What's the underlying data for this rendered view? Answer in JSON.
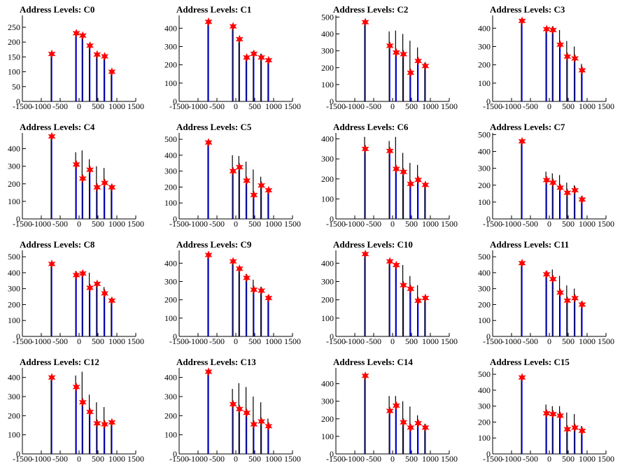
{
  "colors": {
    "histogram": "#000000",
    "fit": "#0000ff",
    "marker": "#ff0000",
    "axis": "#000000"
  },
  "chart_data": [
    {
      "type": "bar",
      "title": "Address Levels: C0",
      "xlim": [
        -1500,
        1500
      ],
      "ylim": [
        0,
        290
      ],
      "yticks": [
        0,
        50,
        100,
        150,
        200,
        250
      ],
      "xticks": [
        -1500,
        -1000,
        -500,
        0,
        500,
        1000,
        1500
      ],
      "peaks": [
        {
          "x": -740,
          "y": 160
        },
        {
          "x": -90,
          "y": 230
        },
        {
          "x": 80,
          "y": 222
        },
        {
          "x": 270,
          "y": 188
        },
        {
          "x": 460,
          "y": 158
        },
        {
          "x": 660,
          "y": 152
        },
        {
          "x": 850,
          "y": 100
        }
      ],
      "markers": [
        160,
        230,
        222,
        188,
        158,
        152,
        100
      ]
    },
    {
      "type": "bar",
      "title": "Address Levels: C1",
      "xlim": [
        -1500,
        1500
      ],
      "ylim": [
        0,
        470
      ],
      "yticks": [
        0,
        100,
        200,
        300,
        400
      ],
      "xticks": [
        -1500,
        -1000,
        -500,
        0,
        500,
        1000,
        1500
      ],
      "peaks": [
        {
          "x": -740,
          "y": 435
        },
        {
          "x": -90,
          "y": 400
        },
        {
          "x": 80,
          "y": 340
        },
        {
          "x": 270,
          "y": 250
        },
        {
          "x": 460,
          "y": 275
        },
        {
          "x": 660,
          "y": 260
        },
        {
          "x": 850,
          "y": 225
        }
      ],
      "markers": [
        435,
        410,
        340,
        240,
        260,
        240,
        225
      ]
    },
    {
      "type": "bar",
      "title": "Address Levels: C2",
      "xlim": [
        -1500,
        1500
      ],
      "ylim": [
        0,
        510
      ],
      "yticks": [
        0,
        100,
        200,
        300,
        400,
        500
      ],
      "xticks": [
        -1500,
        -1000,
        -500,
        0,
        500,
        1000,
        1500
      ],
      "peaks": [
        {
          "x": -740,
          "y": 470
        },
        {
          "x": -90,
          "y": 415
        },
        {
          "x": 80,
          "y": 420
        },
        {
          "x": 270,
          "y": 400
        },
        {
          "x": 460,
          "y": 360
        },
        {
          "x": 660,
          "y": 320
        },
        {
          "x": 850,
          "y": 230
        }
      ],
      "markers": [
        470,
        330,
        290,
        280,
        170,
        240,
        210
      ]
    },
    {
      "type": "bar",
      "title": "Address Levels: C3",
      "xlim": [
        -1500,
        1500
      ],
      "ylim": [
        0,
        470
      ],
      "yticks": [
        0,
        100,
        200,
        300,
        400
      ],
      "xticks": [
        -1500,
        -1000,
        -500,
        0,
        500,
        1000,
        1500
      ],
      "peaks": [
        {
          "x": -740,
          "y": 440
        },
        {
          "x": -90,
          "y": 400
        },
        {
          "x": 80,
          "y": 410
        },
        {
          "x": 270,
          "y": 390
        },
        {
          "x": 460,
          "y": 330
        },
        {
          "x": 660,
          "y": 300
        },
        {
          "x": 850,
          "y": 205
        }
      ],
      "markers": [
        440,
        395,
        390,
        310,
        245,
        235,
        170
      ]
    },
    {
      "type": "bar",
      "title": "Address Levels: C4",
      "xlim": [
        -1500,
        1500
      ],
      "ylim": [
        0,
        490
      ],
      "yticks": [
        0,
        100,
        200,
        300,
        400
      ],
      "xticks": [
        -1500,
        -1000,
        -500,
        0,
        500,
        1000,
        1500
      ],
      "peaks": [
        {
          "x": -740,
          "y": 470
        },
        {
          "x": -90,
          "y": 380
        },
        {
          "x": 80,
          "y": 390
        },
        {
          "x": 270,
          "y": 340
        },
        {
          "x": 460,
          "y": 300
        },
        {
          "x": 660,
          "y": 290
        },
        {
          "x": 850,
          "y": 195
        }
      ],
      "markers": [
        470,
        310,
        230,
        280,
        180,
        205,
        180
      ]
    },
    {
      "type": "bar",
      "title": "Address Levels: C5",
      "xlim": [
        -1500,
        1500
      ],
      "ylim": [
        0,
        540
      ],
      "yticks": [
        0,
        100,
        200,
        300,
        400,
        500
      ],
      "xticks": [
        -1500,
        -1000,
        -500,
        0,
        500,
        1000,
        1500
      ],
      "peaks": [
        {
          "x": -740,
          "y": 480
        },
        {
          "x": -90,
          "y": 400
        },
        {
          "x": 80,
          "y": 395
        },
        {
          "x": 270,
          "y": 360
        },
        {
          "x": 460,
          "y": 310
        },
        {
          "x": 660,
          "y": 265
        },
        {
          "x": 850,
          "y": 190
        }
      ],
      "markers": [
        480,
        300,
        325,
        240,
        150,
        210,
        180
      ]
    },
    {
      "type": "bar",
      "title": "Address Levels: C6",
      "xlim": [
        -1500,
        1500
      ],
      "ylim": [
        0,
        430
      ],
      "yticks": [
        0,
        100,
        200,
        300,
        400
      ],
      "xticks": [
        -1500,
        -1000,
        -500,
        0,
        500,
        1000,
        1500
      ],
      "peaks": [
        {
          "x": -740,
          "y": 410
        },
        {
          "x": -90,
          "y": 390
        },
        {
          "x": 80,
          "y": 410
        },
        {
          "x": 270,
          "y": 330
        },
        {
          "x": 460,
          "y": 280
        },
        {
          "x": 660,
          "y": 270
        },
        {
          "x": 850,
          "y": 180
        }
      ],
      "markers": [
        350,
        340,
        250,
        235,
        175,
        195,
        170
      ]
    },
    {
      "type": "bar",
      "title": "Address Levels: C7",
      "xlim": [
        -1500,
        1500
      ],
      "ylim": [
        0,
        510
      ],
      "yticks": [
        0,
        100,
        200,
        300,
        400,
        500
      ],
      "xticks": [
        -1500,
        -1000,
        -500,
        0,
        500,
        1000,
        1500
      ],
      "peaks": [
        {
          "x": -740,
          "y": 460
        },
        {
          "x": -90,
          "y": 280
        },
        {
          "x": 80,
          "y": 270
        },
        {
          "x": 270,
          "y": 260
        },
        {
          "x": 460,
          "y": 215
        },
        {
          "x": 660,
          "y": 200
        },
        {
          "x": 850,
          "y": 135
        }
      ],
      "markers": [
        460,
        230,
        215,
        185,
        155,
        170,
        115
      ]
    },
    {
      "type": "bar",
      "title": "Address Levels: C8",
      "xlim": [
        -1500,
        1500
      ],
      "ylim": [
        0,
        540
      ],
      "yticks": [
        0,
        100,
        200,
        300,
        400,
        500
      ],
      "xticks": [
        -1500,
        -1000,
        -500,
        0,
        500,
        1000,
        1500
      ],
      "peaks": [
        {
          "x": -740,
          "y": 455
        },
        {
          "x": -90,
          "y": 410
        },
        {
          "x": 80,
          "y": 410
        },
        {
          "x": 270,
          "y": 400
        },
        {
          "x": 460,
          "y": 340
        },
        {
          "x": 660,
          "y": 310
        },
        {
          "x": 850,
          "y": 240
        }
      ],
      "markers": [
        455,
        385,
        395,
        305,
        330,
        270,
        225
      ]
    },
    {
      "type": "bar",
      "title": "Address Levels: C9",
      "xlim": [
        -1500,
        1500
      ],
      "ylim": [
        0,
        470
      ],
      "yticks": [
        0,
        100,
        200,
        300,
        400
      ],
      "xticks": [
        -1500,
        -1000,
        -500,
        0,
        500,
        1000,
        1500
      ],
      "peaks": [
        {
          "x": -740,
          "y": 445
        },
        {
          "x": -90,
          "y": 410
        },
        {
          "x": 80,
          "y": 380
        },
        {
          "x": 270,
          "y": 340
        },
        {
          "x": 460,
          "y": 310
        },
        {
          "x": 660,
          "y": 270
        },
        {
          "x": 850,
          "y": 225
        }
      ],
      "markers": [
        445,
        410,
        370,
        320,
        255,
        250,
        210
      ]
    },
    {
      "type": "bar",
      "title": "Address Levels: C10",
      "xlim": [
        -1500,
        1500
      ],
      "ylim": [
        0,
        470
      ],
      "yticks": [
        0,
        100,
        200,
        300,
        400
      ],
      "xticks": [
        -1500,
        -1000,
        -500,
        0,
        500,
        1000,
        1500
      ],
      "peaks": [
        {
          "x": -740,
          "y": 450
        },
        {
          "x": -90,
          "y": 420
        },
        {
          "x": 80,
          "y": 400
        },
        {
          "x": 270,
          "y": 390
        },
        {
          "x": 460,
          "y": 330
        },
        {
          "x": 660,
          "y": 280
        },
        {
          "x": 850,
          "y": 215
        }
      ],
      "markers": [
        450,
        410,
        390,
        280,
        260,
        195,
        210
      ]
    },
    {
      "type": "bar",
      "title": "Address Levels: C11",
      "xlim": [
        -1500,
        1500
      ],
      "ylim": [
        0,
        540
      ],
      "yticks": [
        0,
        100,
        200,
        300,
        400,
        500
      ],
      "xticks": [
        -1500,
        -1000,
        -500,
        0,
        500,
        1000,
        1500
      ],
      "peaks": [
        {
          "x": -740,
          "y": 460
        },
        {
          "x": -90,
          "y": 410
        },
        {
          "x": 80,
          "y": 420
        },
        {
          "x": 270,
          "y": 380
        },
        {
          "x": 460,
          "y": 320
        },
        {
          "x": 660,
          "y": 300
        },
        {
          "x": 850,
          "y": 220
        }
      ],
      "markers": [
        460,
        390,
        360,
        275,
        225,
        240,
        200
      ]
    },
    {
      "type": "bar",
      "title": "Address Levels: C12",
      "xlim": [
        -1500,
        1500
      ],
      "ylim": [
        0,
        450
      ],
      "yticks": [
        0,
        100,
        200,
        300,
        400
      ],
      "xticks": [
        -1500,
        -1000,
        -500,
        0,
        500,
        1000,
        1500
      ],
      "peaks": [
        {
          "x": -740,
          "y": 400
        },
        {
          "x": -90,
          "y": 410
        },
        {
          "x": 80,
          "y": 430
        },
        {
          "x": 270,
          "y": 310
        },
        {
          "x": 460,
          "y": 270
        },
        {
          "x": 660,
          "y": 245
        },
        {
          "x": 850,
          "y": 170
        }
      ],
      "markers": [
        400,
        350,
        270,
        220,
        160,
        155,
        165
      ]
    },
    {
      "type": "bar",
      "title": "Address Levels: C13",
      "xlim": [
        -1500,
        1500
      ],
      "ylim": [
        0,
        450
      ],
      "yticks": [
        0,
        100,
        200,
        300,
        400
      ],
      "xticks": [
        -1500,
        -1000,
        -500,
        0,
        500,
        1000,
        1500
      ],
      "peaks": [
        {
          "x": -740,
          "y": 430
        },
        {
          "x": -90,
          "y": 340
        },
        {
          "x": 80,
          "y": 370
        },
        {
          "x": 270,
          "y": 350
        },
        {
          "x": 460,
          "y": 300
        },
        {
          "x": 660,
          "y": 270
        },
        {
          "x": 850,
          "y": 185
        }
      ],
      "markers": [
        430,
        260,
        235,
        215,
        155,
        170,
        145
      ]
    },
    {
      "type": "bar",
      "title": "Address Levels: C14",
      "xlim": [
        -1500,
        1500
      ],
      "ylim": [
        0,
        490
      ],
      "yticks": [
        0,
        100,
        200,
        300,
        400
      ],
      "xticks": [
        -1500,
        -1000,
        -500,
        0,
        500,
        1000,
        1500
      ],
      "peaks": [
        {
          "x": -740,
          "y": 445
        },
        {
          "x": -90,
          "y": 330
        },
        {
          "x": 80,
          "y": 330
        },
        {
          "x": 270,
          "y": 300
        },
        {
          "x": 460,
          "y": 270
        },
        {
          "x": 660,
          "y": 220
        },
        {
          "x": 850,
          "y": 170
        }
      ],
      "markers": [
        445,
        245,
        275,
        180,
        150,
        175,
        150
      ]
    },
    {
      "type": "bar",
      "title": "Address Levels: C15",
      "xlim": [
        -1500,
        1500
      ],
      "ylim": [
        0,
        540
      ],
      "yticks": [
        0,
        100,
        200,
        300,
        400,
        500
      ],
      "xticks": [
        -1500,
        -1000,
        -500,
        0,
        500,
        1000,
        1500
      ],
      "peaks": [
        {
          "x": -740,
          "y": 480
        },
        {
          "x": -90,
          "y": 310
        },
        {
          "x": 80,
          "y": 300
        },
        {
          "x": 270,
          "y": 300
        },
        {
          "x": 460,
          "y": 260
        },
        {
          "x": 660,
          "y": 250
        },
        {
          "x": 850,
          "y": 175
        }
      ],
      "markers": [
        480,
        255,
        250,
        240,
        155,
        165,
        145
      ]
    }
  ]
}
